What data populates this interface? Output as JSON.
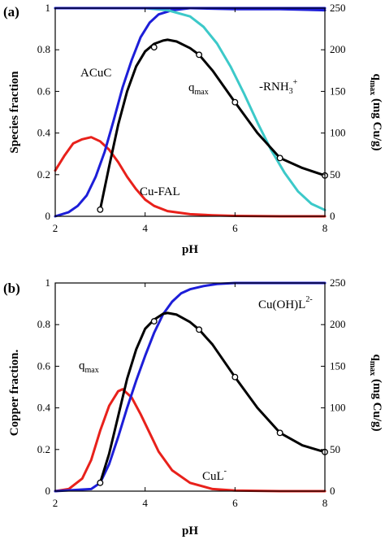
{
  "chart_data": [
    {
      "type": "line",
      "panel_label": "(a)",
      "xlabel": "pH",
      "ylabel": "Species fraction",
      "y2label": {
        "base": "q",
        "sub": "max",
        "rest": " (mg Cu/g)"
      },
      "xlim": [
        2,
        8
      ],
      "ylim": [
        0,
        1
      ],
      "y2lim": [
        0,
        250
      ],
      "x_ticks": [
        2,
        4,
        6,
        8
      ],
      "y_ticks": [
        0,
        0.2,
        0.4,
        0.6,
        0.8,
        1
      ],
      "y2_ticks": [
        0,
        50,
        100,
        150,
        200,
        250
      ],
      "series": [
        {
          "color": "#e8211b",
          "axis": "left",
          "x": [
            2,
            2.2,
            2.4,
            2.6,
            2.8,
            3.0,
            3.2,
            3.4,
            3.6,
            3.8,
            4.0,
            4.2,
            4.5,
            5.0,
            5.5,
            6.0,
            7.0,
            8.0
          ],
          "y": [
            0.22,
            0.29,
            0.35,
            0.37,
            0.38,
            0.36,
            0.32,
            0.26,
            0.19,
            0.13,
            0.08,
            0.05,
            0.025,
            0.01,
            0.005,
            0.002,
            0.0,
            0.0
          ]
        },
        {
          "color": "#1d1ed8",
          "axis": "left",
          "x": [
            2,
            2.3,
            2.5,
            2.7,
            2.9,
            3.1,
            3.3,
            3.5,
            3.7,
            3.9,
            4.1,
            4.3,
            4.6,
            5.0,
            5.5,
            6.0,
            7.0,
            8.0
          ],
          "y": [
            0.0,
            0.02,
            0.05,
            0.1,
            0.19,
            0.31,
            0.46,
            0.62,
            0.75,
            0.86,
            0.93,
            0.97,
            0.99,
            1.0,
            1.0,
            1.0,
            1.0,
            1.0
          ]
        },
        {
          "color": "#3cc9c9",
          "axis": "left",
          "x": [
            2,
            3,
            4,
            4.5,
            5.0,
            5.3,
            5.6,
            5.9,
            6.2,
            6.5,
            6.8,
            7.1,
            7.4,
            7.7,
            8.0
          ],
          "y": [
            1.0,
            1.0,
            1.0,
            0.99,
            0.96,
            0.91,
            0.83,
            0.72,
            0.59,
            0.45,
            0.32,
            0.21,
            0.12,
            0.06,
            0.03
          ]
        },
        {
          "color": "#1d1ed8",
          "axis": "left",
          "x": [
            2,
            3,
            4,
            5,
            6,
            7,
            8
          ],
          "y": [
            1.0,
            1.0,
            1.0,
            1.0,
            0.995,
            0.995,
            0.99
          ]
        },
        {
          "color": "#000000",
          "axis": "right",
          "markers": true,
          "x": [
            3.0,
            4.2,
            5.2,
            6.0,
            7.0,
            8.0
          ],
          "y": [
            8,
            203,
            194,
            137,
            70,
            49
          ],
          "curve_x": [
            3.0,
            3.2,
            3.4,
            3.6,
            3.8,
            4.0,
            4.2,
            4.4,
            4.5,
            4.7,
            5.0,
            5.2,
            5.5,
            6.0,
            6.5,
            7.0,
            7.5,
            8.0
          ],
          "curve_y": [
            8,
            60,
            110,
            150,
            180,
            198,
            207,
            211,
            212,
            210,
            202,
            194,
            175,
            137,
            100,
            70,
            58,
            49
          ]
        }
      ],
      "annotations": [
        {
          "label": "ACuC",
          "x": 3.05,
          "y": 0.67
        },
        {
          "label": "Cu-FAL",
          "x": 3.9,
          "y": 0.13
        },
        {
          "label": "-RNH3+",
          "x": 6.55,
          "y": 0.57
        }
      ]
    },
    {
      "type": "line",
      "panel_label": "(b)",
      "xlabel": "pH",
      "ylabel": "Copper fraction.",
      "y2label": {
        "base": "q",
        "sub": "max",
        "rest": " (mg Cu/g)"
      },
      "xlim": [
        2,
        8
      ],
      "ylim": [
        0,
        1
      ],
      "y2lim": [
        0,
        250
      ],
      "x_ticks": [
        2,
        4,
        6,
        8
      ],
      "y_ticks": [
        0,
        0.2,
        0.4,
        0.6,
        0.8,
        1
      ],
      "y2_ticks": [
        0,
        50,
        100,
        150,
        200,
        250
      ],
      "series": [
        {
          "color": "#e8211b",
          "axis": "left",
          "x": [
            2,
            2.3,
            2.6,
            2.8,
            3.0,
            3.2,
            3.4,
            3.5,
            3.7,
            3.9,
            4.1,
            4.3,
            4.6,
            5.0,
            5.5,
            6.0,
            7.0,
            8.0
          ],
          "y": [
            0.0,
            0.01,
            0.06,
            0.15,
            0.29,
            0.41,
            0.48,
            0.49,
            0.45,
            0.37,
            0.28,
            0.19,
            0.1,
            0.04,
            0.01,
            0.003,
            0.0,
            0.0
          ]
        },
        {
          "color": "#1d1ed8",
          "axis": "left",
          "x": [
            2,
            2.8,
            3.0,
            3.2,
            3.4,
            3.6,
            3.8,
            4.0,
            4.2,
            4.4,
            4.6,
            4.8,
            5.0,
            5.3,
            5.6,
            6.0,
            7.0,
            8.0
          ],
          "y": [
            0.0,
            0.01,
            0.04,
            0.13,
            0.26,
            0.4,
            0.53,
            0.65,
            0.76,
            0.85,
            0.91,
            0.95,
            0.97,
            0.985,
            0.995,
            1.0,
            1.0,
            1.0
          ]
        },
        {
          "color": "#000000",
          "axis": "right",
          "markers": true,
          "x": [
            3.0,
            4.2,
            5.2,
            6.0,
            7.0,
            8.0
          ],
          "y": [
            10,
            204,
            194,
            137,
            70,
            47
          ],
          "curve_x": [
            3.0,
            3.2,
            3.4,
            3.6,
            3.8,
            4.0,
            4.2,
            4.4,
            4.5,
            4.7,
            5.0,
            5.2,
            5.5,
            6.0,
            6.5,
            7.0,
            7.5,
            8.0
          ],
          "curve_y": [
            10,
            45,
            90,
            135,
            170,
            195,
            206,
            213,
            214,
            212,
            203,
            194,
            176,
            137,
            100,
            70,
            55,
            47
          ]
        }
      ],
      "annotations": [
        {
          "label": "qmax",
          "x": 2.75,
          "y": 0.74
        },
        {
          "label": "CuL-",
          "x": 4.75,
          "y": 0.17
        },
        {
          "label": "Cu(OH)L2-",
          "x": 6.25,
          "y": 0.91
        }
      ]
    }
  ],
  "labels": {
    "a_acuc": "ACuC",
    "a_cufal": "Cu-FAL",
    "a_rnh_main": "-RNH",
    "a_rnh_sub": "3",
    "a_rnh_sup": "+",
    "a_q": "q",
    "a_qsub": "max",
    "b_q": "q",
    "b_qsub": "max",
    "b_cul_main": "CuL",
    "b_cul_sup": "-",
    "b_cuoh_main": "Cu(OH)L",
    "b_cuoh_sup": "2-"
  }
}
